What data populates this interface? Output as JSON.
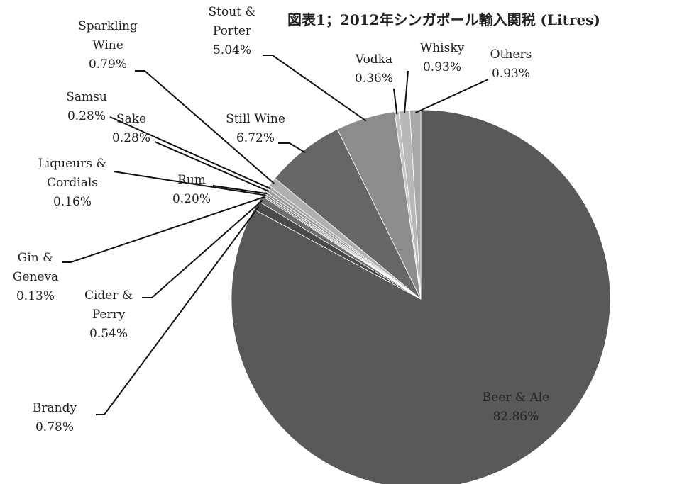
{
  "chart_data": {
    "type": "pie",
    "title": "図表1；2012年シンガポール輸入関税 (Litres)",
    "categories": [
      "Beer & Ale",
      "Brandy",
      "Cider & Perry",
      "Gin & Geneva",
      "Liqueurs & Cordials",
      "Rum",
      "Sake",
      "Samsu",
      "Sparkling Wine",
      "Still Wine",
      "Stout & Porter",
      "Vodka",
      "Whisky",
      "Others"
    ],
    "values": [
      82.86,
      0.78,
      0.54,
      0.13,
      0.16,
      0.2,
      0.28,
      0.28,
      0.79,
      6.72,
      5.04,
      0.36,
      0.93,
      0.93
    ],
    "value_labels": [
      "82.86%",
      "0.78%",
      "0.54%",
      "0.13%",
      "0.16%",
      "0.20%",
      "0.28%",
      "0.28%",
      "0.79%",
      "6.72%",
      "5.04%",
      "0.36%",
      "0.93%",
      "0.93%"
    ],
    "colors": [
      "#595959",
      "#4a4a4a",
      "#6e6e6e",
      "#7a7a7a",
      "#858585",
      "#909090",
      "#9b9b9b",
      "#a6a6a6",
      "#b0b0b0",
      "#666666",
      "#8c8c8c",
      "#c4c4c4",
      "#b8b8b8",
      "#a8a8a8"
    ]
  }
}
